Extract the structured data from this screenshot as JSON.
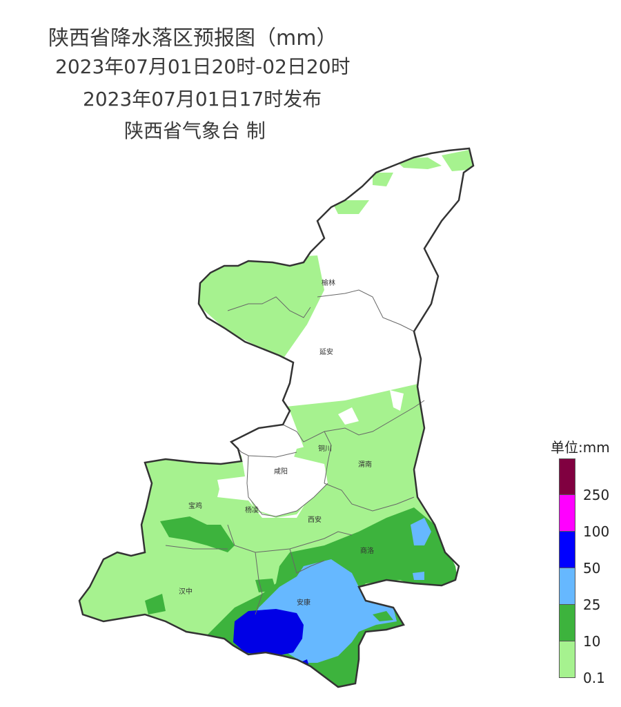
{
  "header": {
    "title": "陕西省降水落区预报图（mm）",
    "period": "2023年07月01日20时-02日20时",
    "issued": "2023年07月01日17时发布",
    "producer": "陕西省气象台 制"
  },
  "cities": [
    {
      "name": "榆林"
    },
    {
      "name": "延安"
    },
    {
      "name": "铜川"
    },
    {
      "name": "渭南"
    },
    {
      "name": "咸阳"
    },
    {
      "name": "宝鸡"
    },
    {
      "name": "杨凌"
    },
    {
      "name": "西安"
    },
    {
      "name": "商洛"
    },
    {
      "name": "汉中"
    },
    {
      "name": "安康"
    }
  ],
  "legend": {
    "title": "单位:mm",
    "levels": [
      {
        "label": "",
        "color": "#800040"
      },
      {
        "label": "250",
        "color": "#ff00ff"
      },
      {
        "label": "100",
        "color": "#0000ff"
      },
      {
        "label": "50",
        "color": "#66b8ff"
      },
      {
        "label": "25",
        "color": "#3db33d"
      },
      {
        "label": "10",
        "color": "#a6f28f"
      },
      {
        "label": "0.1",
        "color": ""
      }
    ]
  }
}
